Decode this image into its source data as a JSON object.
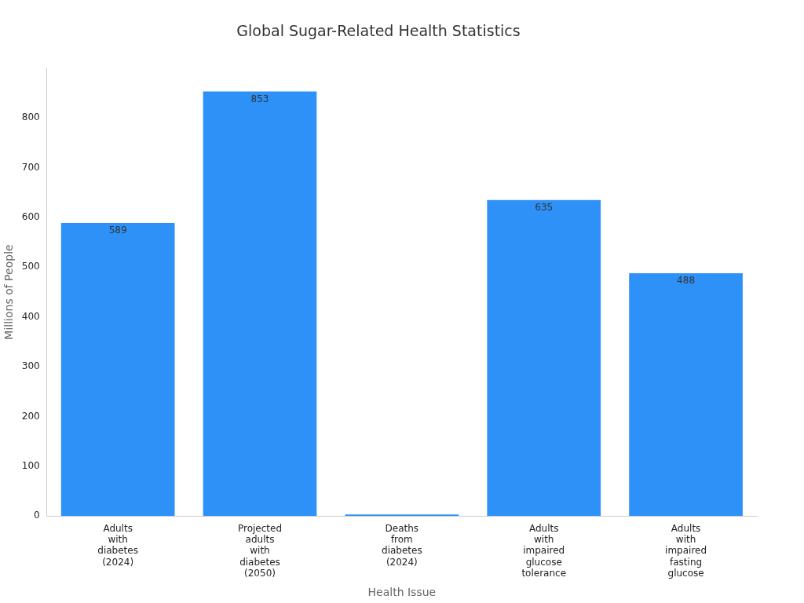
{
  "chart_data": {
    "type": "bar",
    "title": "Global Sugar-Related Health Statistics",
    "xlabel": "Health Issue",
    "ylabel": "Millions of People",
    "categories": [
      "Adults with diabetes (2024)",
      "Projected adults with diabetes (2050)",
      "Deaths from diabetes (2024)",
      "Adults with impaired glucose tolerance",
      "Adults with impaired fasting glucose"
    ],
    "values": [
      589,
      853,
      3,
      635,
      488
    ],
    "value_labels": [
      "589",
      "853",
      null,
      "635",
      "488"
    ],
    "color": "#2e91f8",
    "ylim": [
      0,
      900
    ],
    "yticks": [
      0,
      100,
      200,
      300,
      400,
      500,
      600,
      700,
      800
    ],
    "grid": false,
    "legend": false
  }
}
